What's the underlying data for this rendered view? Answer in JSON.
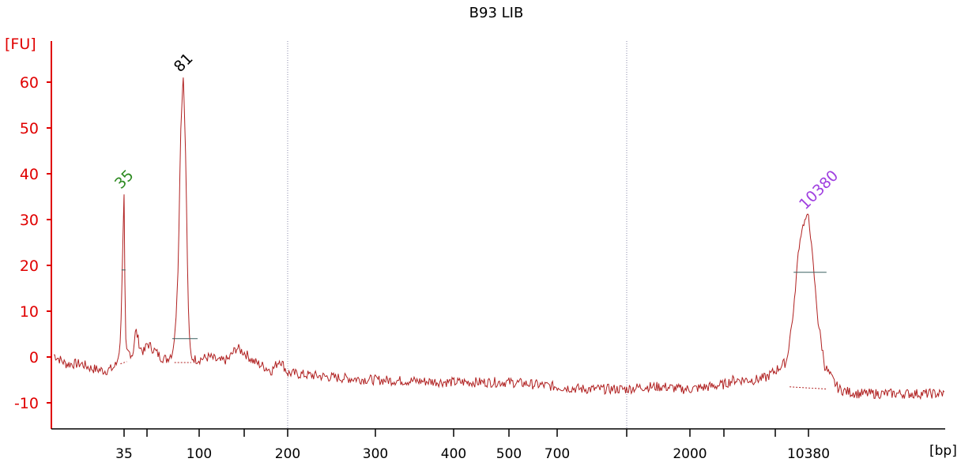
{
  "chart_data": {
    "type": "line",
    "title": "B93 LIB",
    "ylabel": "[FU]",
    "xlabel": "[bp]",
    "ylim": [
      -16,
      68
    ],
    "colors": {
      "axis": "#e00000",
      "trace": "#b02020",
      "grid": "#8a8aa8",
      "baseline": "#b02020",
      "marker": "#3a6060",
      "ticklabel": "#000000"
    },
    "yticks": [
      -10,
      0,
      10,
      20,
      30,
      40,
      50,
      60
    ],
    "ytick_labels": [
      "-10",
      "0",
      "10",
      "20",
      "30",
      "40",
      "50",
      "60"
    ],
    "xticks": [
      35,
      50,
      100,
      150,
      200,
      300,
      400,
      500,
      700,
      1000,
      2000,
      3000,
      7000,
      10380
    ],
    "xtick_labels": [
      "35",
      "",
      "100",
      "",
      "200",
      "300",
      "400",
      "500",
      "700",
      "",
      "2000",
      "",
      "",
      "10380"
    ],
    "gridlines_x": [
      200,
      1000
    ],
    "peaks": [
      {
        "label": "35",
        "x": 35,
        "height": 35.5,
        "color": "#2e8b22"
      },
      {
        "label": "81",
        "x": 81,
        "height": 61,
        "color": "#000000"
      },
      {
        "label": "10380",
        "x": 10380,
        "height": 31,
        "color": "#a040e0"
      }
    ],
    "series": [
      {
        "x": [
          20,
          22,
          25,
          27,
          30,
          32,
          33,
          34,
          35,
          35.7,
          36.5,
          38,
          40,
          42,
          45,
          48,
          50,
          55,
          60,
          65,
          70,
          73,
          76,
          78,
          80,
          81,
          82,
          84,
          86,
          88,
          90,
          95,
          100,
          110,
          120,
          130,
          140,
          150,
          160,
          170,
          180,
          190,
          200,
          250,
          300,
          400,
          500,
          600,
          700,
          800,
          900,
          1000,
          1200,
          1500,
          1800,
          2000,
          2500,
          3000,
          3500,
          4000,
          5000,
          6000,
          7000,
          8000,
          8700,
          9200,
          9600,
          10000,
          10380,
          10800,
          11400,
          12200,
          13000,
          14000,
          15000,
          17000,
          20000,
          25000,
          30000,
          40000
        ],
        "values": [
          0.5,
          -1.5,
          -1.5,
          -2.5,
          -3,
          -2.5,
          -1.5,
          3,
          35.5,
          4,
          1,
          1,
          0.5,
          6,
          2,
          1,
          3,
          1.5,
          0,
          -0.5,
          1,
          6,
          22,
          48,
          58,
          61,
          56,
          40,
          15,
          3,
          0,
          -0.5,
          -0.5,
          0,
          -1,
          -0.5,
          2,
          1,
          -1,
          -2,
          -3,
          -0.5,
          -3.5,
          -4.5,
          -5,
          -5.5,
          -5.5,
          -6,
          -6.5,
          -7,
          -7,
          -7,
          -6.5,
          -6.5,
          -7,
          -7,
          -6.5,
          -6,
          -5,
          -5,
          -5,
          -4.5,
          -3,
          -1,
          10,
          23,
          28,
          30,
          31,
          22,
          8,
          -2,
          -4.5,
          -7,
          -7.5,
          -8,
          -8,
          -8,
          -8,
          -8
        ]
      }
    ]
  }
}
